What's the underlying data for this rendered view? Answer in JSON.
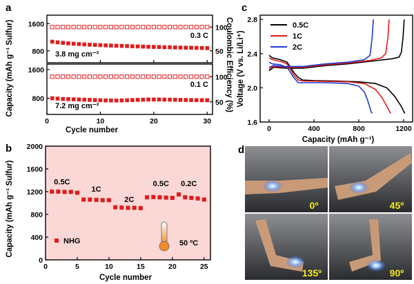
{
  "chart_data": [
    {
      "panel": "a",
      "type": "scatter",
      "xlabel": "Cycle number",
      "ylabel": "Capacity (mAh g⁻¹ Sulfur)",
      "ylabel_right": "Coulombic Efficiency (%)",
      "xlim": [
        0,
        31
      ],
      "xticks": [
        0,
        10,
        20,
        30
      ],
      "subplots": [
        {
          "rate": "0.3 C",
          "loading": "3.8 mg cm⁻²",
          "yticks": [
            800,
            1600
          ],
          "yticks_right": [
            50,
            100
          ],
          "capacity": [
            1070,
            1050,
            1035,
            1020,
            1010,
            1000,
            990,
            980,
            975,
            968,
            960,
            955,
            950,
            945,
            940,
            935,
            930,
            925,
            920,
            915,
            912,
            908,
            905,
            900,
            897,
            893,
            890,
            887,
            884,
            880
          ],
          "coulombic_efficiency": [
            100,
            100,
            100,
            100,
            100,
            100,
            100,
            100,
            100,
            100,
            100,
            100,
            100,
            100,
            100,
            100,
            100,
            100,
            100,
            100,
            100,
            100,
            100,
            100,
            100,
            100,
            100,
            100,
            100,
            100
          ]
        },
        {
          "rate": "0.1 C",
          "loading": "7.2 mg cm⁻²",
          "yticks": [
            800,
            1600
          ],
          "yticks_right": [
            50,
            100
          ],
          "capacity": [
            800,
            790,
            780,
            775,
            770,
            765,
            760,
            755,
            750,
            745,
            740,
            738,
            737,
            740,
            745,
            750,
            755,
            760,
            765,
            765,
            765,
            762,
            760,
            758,
            755,
            752,
            750,
            748,
            746,
            745
          ],
          "coulombic_efficiency": [
            100,
            100,
            100,
            100,
            100,
            100,
            100,
            100,
            100,
            100,
            100,
            100,
            100,
            100,
            100,
            100,
            100,
            100,
            100,
            100,
            100,
            100,
            100,
            100,
            100,
            100,
            100,
            100,
            100,
            100
          ]
        }
      ]
    },
    {
      "panel": "b",
      "type": "scatter",
      "xlabel": "Cycle number",
      "ylabel": "Capacity (mAh g⁻¹ Sulfur)",
      "xlim": [
        0,
        26
      ],
      "ylim": [
        0,
        2000
      ],
      "xticks": [
        0,
        5,
        10,
        15,
        20,
        25
      ],
      "yticks": [
        0,
        400,
        800,
        1200,
        1600,
        2000
      ],
      "legend": "NHG",
      "temperature_label": "50 ºC",
      "rate_labels": [
        {
          "text": "0.5C",
          "x": 2.6,
          "y": 1330
        },
        {
          "text": "1C",
          "x": 8.0,
          "y": 1200
        },
        {
          "text": "2C",
          "x": 13.2,
          "y": 1020
        },
        {
          "text": "0.5C",
          "x": 18.2,
          "y": 1300
        },
        {
          "text": "0.2C",
          "x": 22.6,
          "y": 1300
        }
      ],
      "x": [
        1,
        2,
        3,
        4,
        5,
        6,
        7,
        8,
        9,
        10,
        11,
        12,
        13,
        14,
        15,
        16,
        17,
        18,
        19,
        20,
        21,
        22,
        23,
        24,
        25
      ],
      "values": [
        1200,
        1200,
        1195,
        1195,
        1180,
        1060,
        1060,
        1055,
        1050,
        1050,
        925,
        920,
        915,
        915,
        910,
        1100,
        1105,
        1100,
        1095,
        1090,
        1150,
        1100,
        1090,
        1080,
        1060
      ]
    },
    {
      "panel": "c",
      "type": "line",
      "xlabel": "Capacity (mAh g⁻¹)",
      "ylabel": "Voltage (V vs. Li/Li⁺)",
      "xlim": [
        -80,
        1280
      ],
      "ylim": [
        1.6,
        2.85
      ],
      "xticks": [
        0,
        400,
        800,
        1200
      ],
      "yticks": [
        1.6,
        2.0,
        2.4,
        2.8
      ],
      "series": [
        {
          "name": "0.5C",
          "color": "#000000",
          "discharge": [
            [
              0,
              2.38
            ],
            [
              30,
              2.35
            ],
            [
              100,
              2.33
            ],
            [
              160,
              2.3
            ],
            [
              220,
              2.18
            ],
            [
              260,
              2.12
            ],
            [
              300,
              2.09
            ],
            [
              400,
              2.085
            ],
            [
              600,
              2.08
            ],
            [
              800,
              2.07
            ],
            [
              950,
              2.05
            ],
            [
              1050,
              2.0
            ],
            [
              1120,
              1.9
            ],
            [
              1180,
              1.78
            ],
            [
              1210,
              1.7
            ]
          ],
          "charge": [
            [
              0,
              2.2
            ],
            [
              40,
              2.24
            ],
            [
              150,
              2.23
            ],
            [
              300,
              2.23
            ],
            [
              500,
              2.26
            ],
            [
              700,
              2.28
            ],
            [
              900,
              2.31
            ],
            [
              1100,
              2.34
            ],
            [
              1160,
              2.36
            ],
            [
              1180,
              2.42
            ],
            [
              1195,
              2.6
            ],
            [
              1205,
              2.8
            ]
          ]
        },
        {
          "name": "1C",
          "color": "#e31a1c",
          "discharge": [
            [
              0,
              2.35
            ],
            [
              30,
              2.33
            ],
            [
              100,
              2.31
            ],
            [
              160,
              2.28
            ],
            [
              220,
              2.15
            ],
            [
              260,
              2.09
            ],
            [
              300,
              2.08
            ],
            [
              500,
              2.075
            ],
            [
              700,
              2.07
            ],
            [
              850,
              2.05
            ],
            [
              950,
              1.98
            ],
            [
              1010,
              1.88
            ],
            [
              1060,
              1.76
            ],
            [
              1085,
              1.7
            ]
          ],
          "charge": [
            [
              0,
              2.22
            ],
            [
              40,
              2.25
            ],
            [
              150,
              2.24
            ],
            [
              300,
              2.24
            ],
            [
              500,
              2.27
            ],
            [
              700,
              2.29
            ],
            [
              900,
              2.32
            ],
            [
              1000,
              2.35
            ],
            [
              1040,
              2.4
            ],
            [
              1060,
              2.6
            ],
            [
              1070,
              2.8
            ]
          ]
        },
        {
          "name": "2C",
          "color": "#1f3bd4",
          "discharge": [
            [
              0,
              2.3
            ],
            [
              30,
              2.28
            ],
            [
              100,
              2.27
            ],
            [
              160,
              2.24
            ],
            [
              220,
              2.12
            ],
            [
              260,
              2.06
            ],
            [
              300,
              2.06
            ],
            [
              500,
              2.06
            ],
            [
              700,
              2.05
            ],
            [
              800,
              2.02
            ],
            [
              850,
              1.95
            ],
            [
              880,
              1.85
            ],
            [
              910,
              1.72
            ],
            [
              920,
              1.7
            ]
          ],
          "charge": [
            [
              0,
              2.24
            ],
            [
              40,
              2.26
            ],
            [
              150,
              2.25
            ],
            [
              300,
              2.25
            ],
            [
              500,
              2.28
            ],
            [
              700,
              2.3
            ],
            [
              850,
              2.33
            ],
            [
              900,
              2.38
            ],
            [
              920,
              2.6
            ],
            [
              930,
              2.8
            ]
          ]
        }
      ]
    }
  ],
  "panel_d": {
    "letter": "d",
    "photos": [
      {
        "angle": "0º"
      },
      {
        "angle": "45º"
      },
      {
        "angle": "135º"
      },
      {
        "angle": "90º"
      }
    ]
  },
  "colors": {
    "red": "#e31a1c",
    "black": "#000000",
    "blue": "#1f3bd4",
    "pink_bg": "#fbd8d6",
    "label_yellow": "#f4ea1a"
  }
}
